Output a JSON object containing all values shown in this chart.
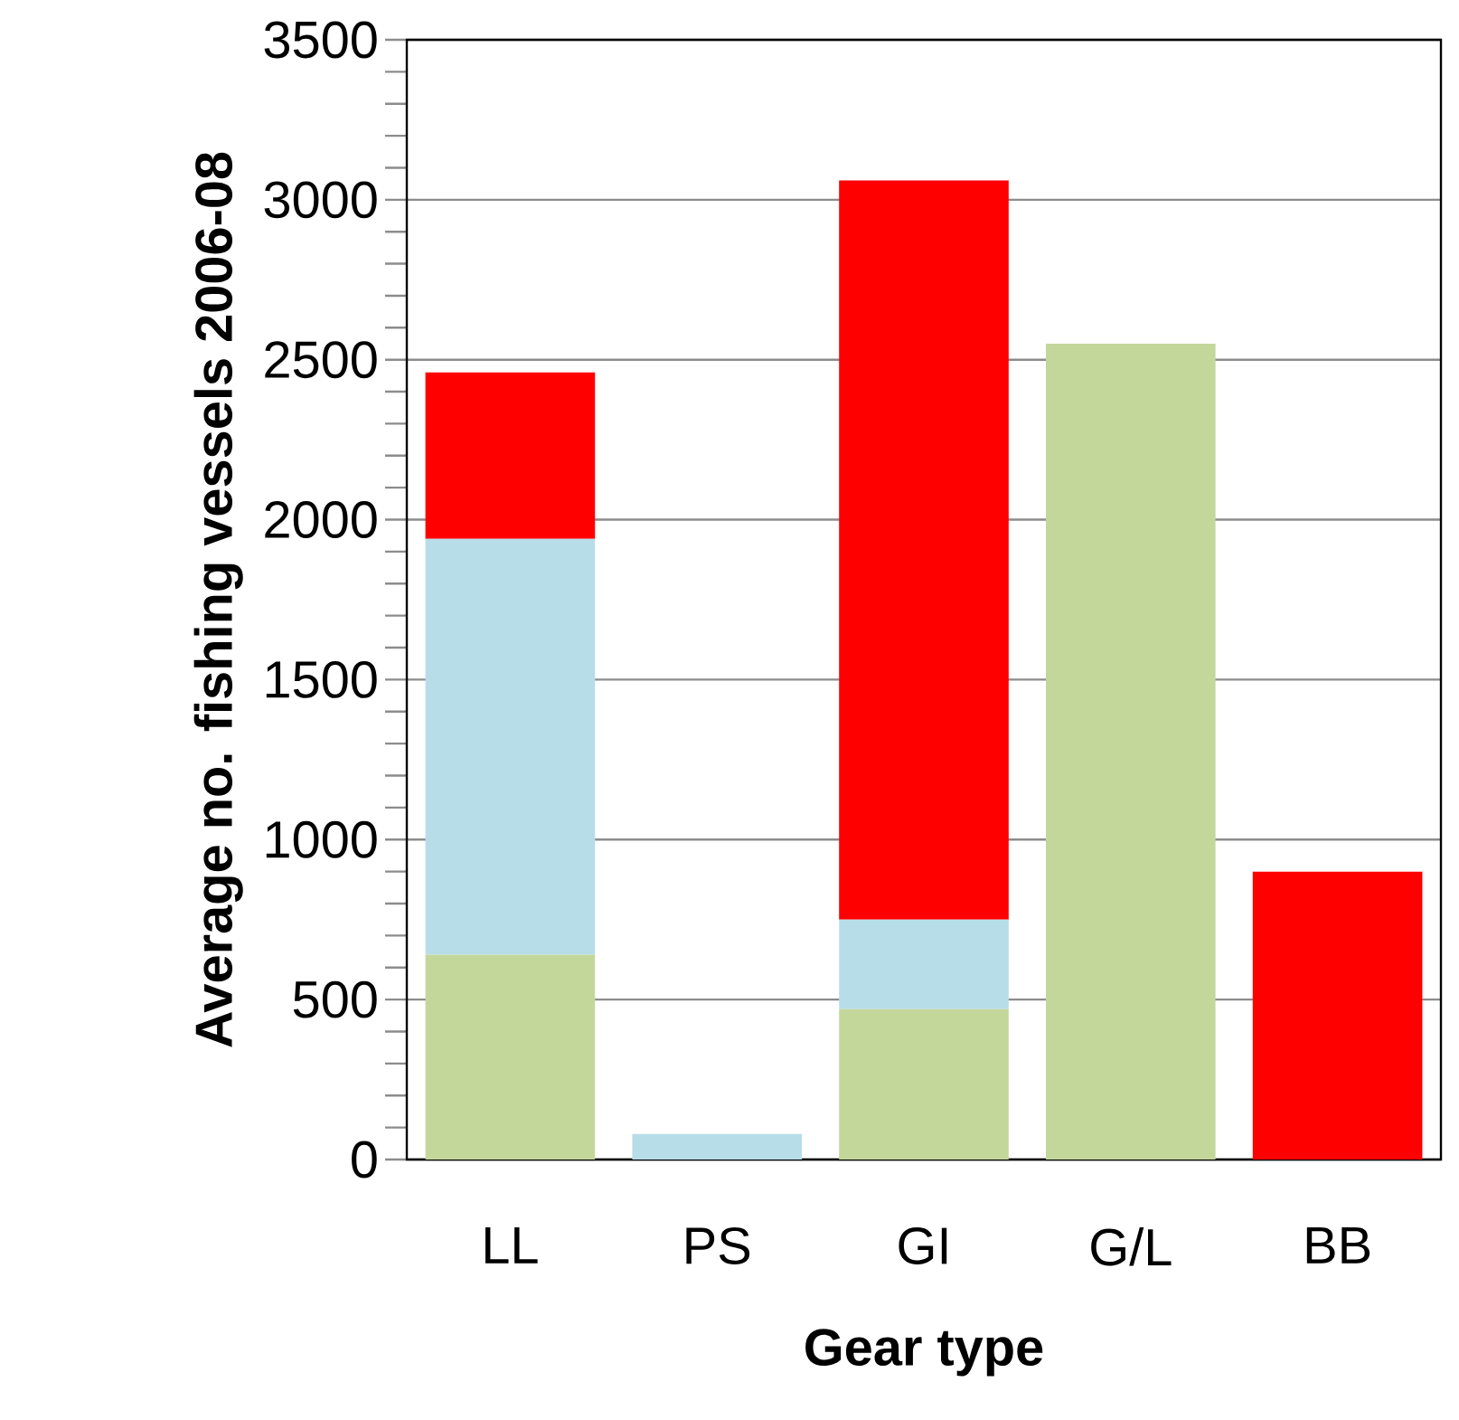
{
  "chart_data": {
    "type": "bar",
    "stacked": true,
    "xlabel": "Gear type",
    "ylabel": "Average no. fishing vessels 2006-08",
    "categories": [
      "LL",
      "PS",
      "GI",
      "G/L",
      "BB"
    ],
    "series": [
      {
        "color": "#c4d79b",
        "values": [
          640,
          0,
          470,
          2550,
          0
        ]
      },
      {
        "color": "#b7dde8",
        "values": [
          1300,
          80,
          280,
          0,
          0
        ]
      },
      {
        "color": "#ff0000",
        "values": [
          520,
          0,
          2310,
          0,
          900
        ]
      }
    ],
    "ylim": [
      0,
      3500
    ],
    "yticks": [
      0,
      500,
      1000,
      1500,
      2000,
      2500,
      3000,
      3500
    ],
    "grid": "y"
  }
}
